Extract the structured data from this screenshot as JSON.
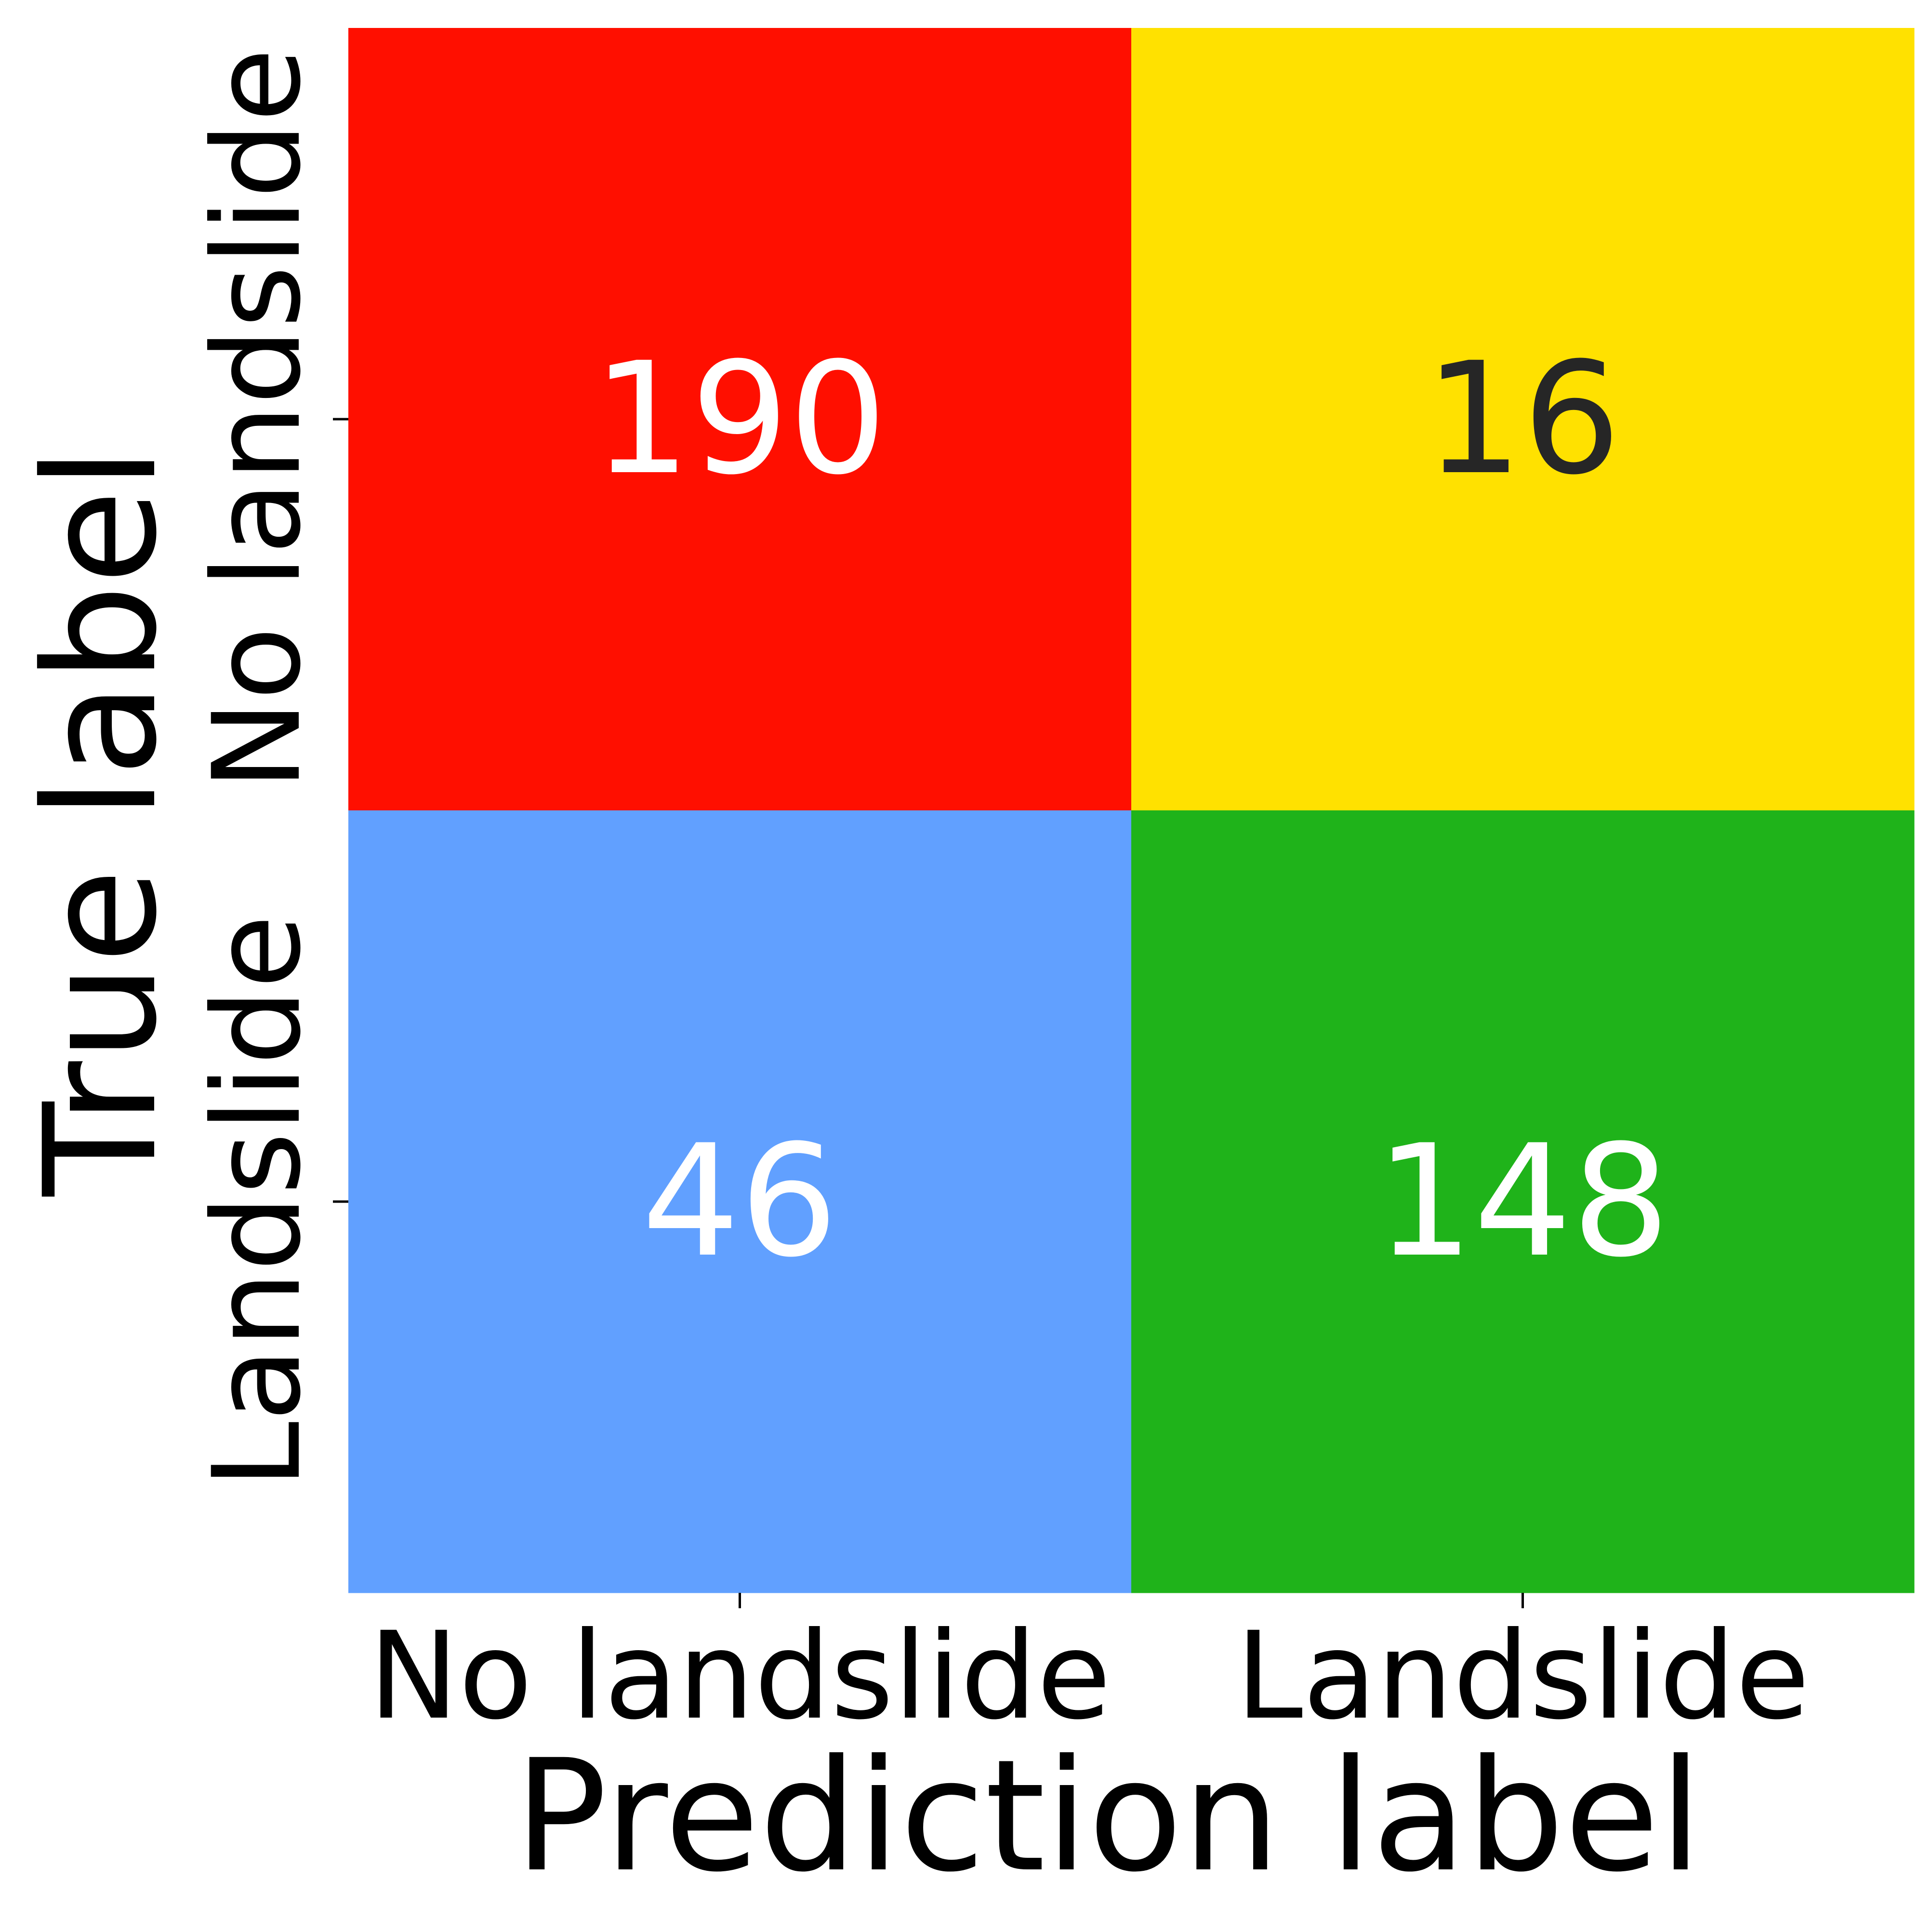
{
  "chart_data": {
    "type": "heatmap",
    "title": "",
    "xlabel": "Prediction label",
    "ylabel": "True label",
    "x_categories": [
      "No landslide",
      "Landslide"
    ],
    "y_categories": [
      "No landslide",
      "Landslide"
    ],
    "values": [
      [
        190,
        16
      ],
      [
        46,
        148
      ]
    ],
    "cell_colors": [
      [
        "#ff0f00",
        "#ffe100"
      ],
      [
        "#61a0ff",
        "#1fb31a"
      ]
    ],
    "text_colors": [
      [
        "#ffffff",
        "#262626"
      ],
      [
        "#ffffff",
        "#ffffff"
      ]
    ],
    "colorbar": false,
    "grid": false
  }
}
